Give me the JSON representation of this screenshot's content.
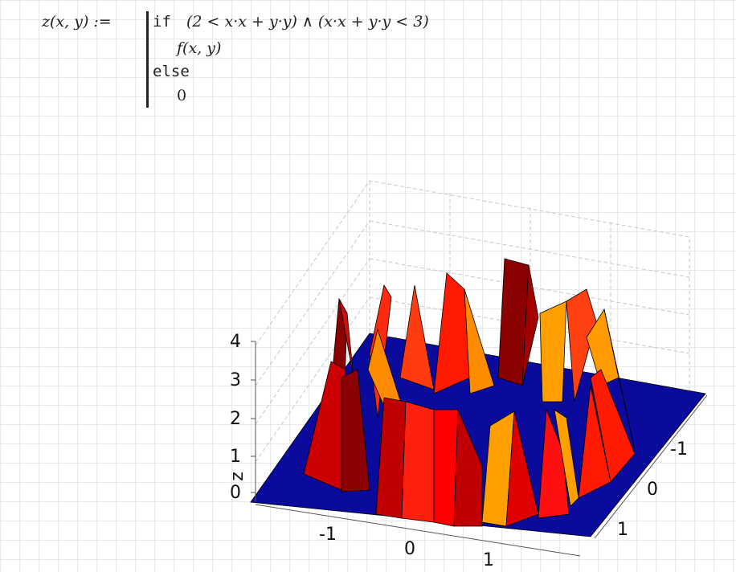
{
  "formula": {
    "lhs": "z(x, y) :=",
    "if": "if",
    "condition": "(2 < x·x + y·y) ∧ (x·x + y·y < 3)",
    "then": "f(x, y)",
    "else": "else",
    "otherwise": "0"
  },
  "plot": {
    "z_axis_label": "z",
    "z_ticks": [
      4,
      3,
      2,
      1,
      0
    ],
    "x_ticks": [
      -1,
      0,
      1
    ],
    "y_ticks": [
      -1,
      0,
      1
    ]
  }
}
